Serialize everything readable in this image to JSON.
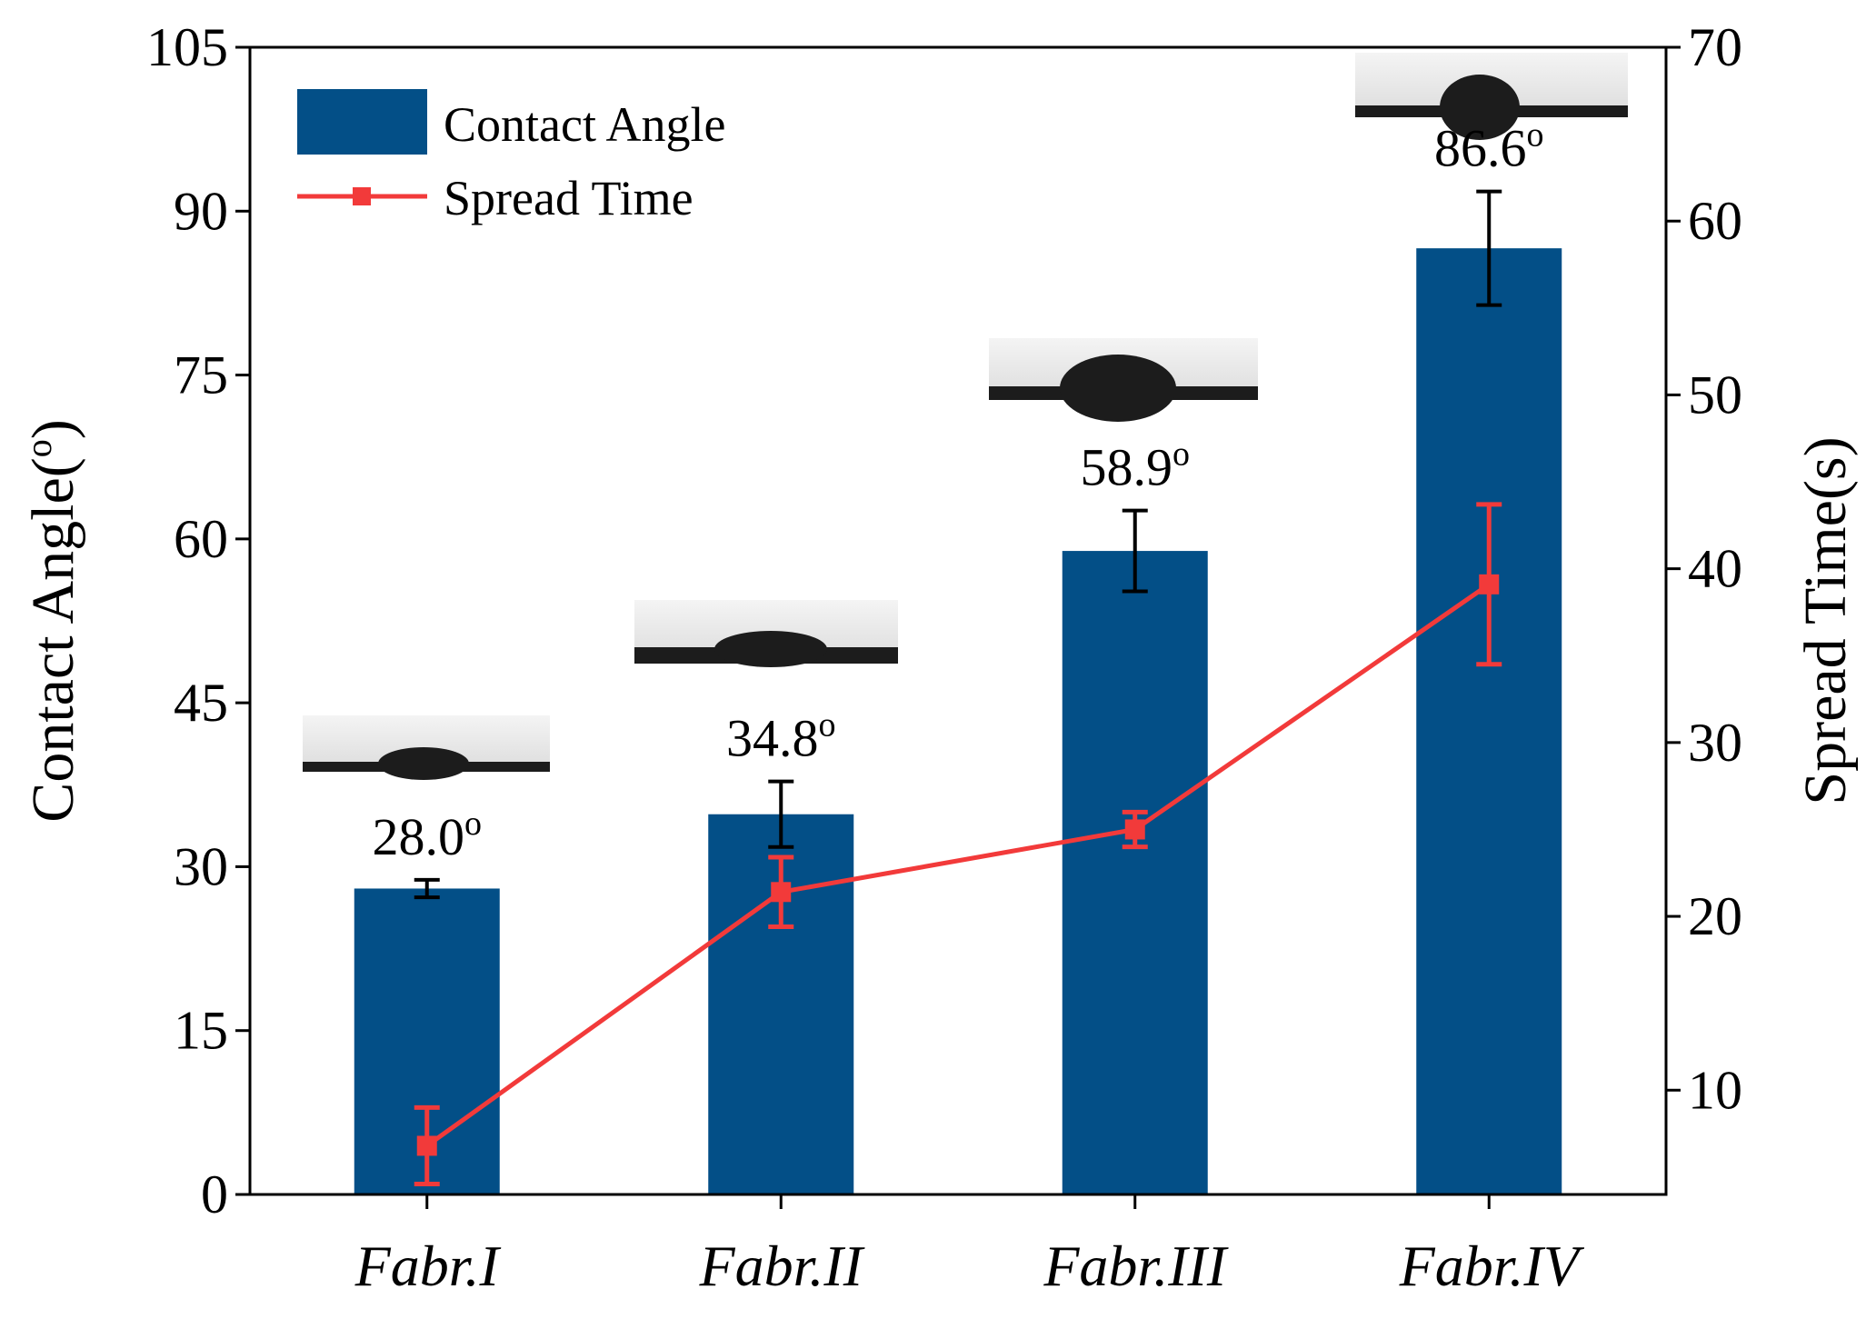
{
  "chart_data": {
    "type": "bar",
    "categories": [
      "Fabr.I",
      "Fabr.II",
      "Fabr.III",
      "Fabr.IV"
    ],
    "series": [
      {
        "name": "Contact Angle",
        "kind": "bar",
        "axis": "left",
        "values": [
          28.0,
          34.8,
          58.9,
          86.6
        ],
        "errors": [
          0.8,
          3.0,
          3.7,
          5.2
        ],
        "labels": [
          "28.0",
          "34.8",
          "58.9",
          "86.6"
        ],
        "color": "#034F87"
      },
      {
        "name": "Spread Time",
        "kind": "line",
        "axis": "right",
        "values": [
          6.8,
          21.4,
          25.0,
          39.1
        ],
        "errors": [
          2.2,
          2.0,
          1.0,
          4.6
        ],
        "color": "#F23A3A"
      }
    ],
    "xlabel": "",
    "ylabel": "Contact Angle(o)",
    "ylabel_main": "Contact Angle(",
    "ylabel_sup": "o",
    "ylabel_close": ")",
    "y2label": "Spread Time(s)",
    "ylim": [
      0,
      105
    ],
    "y2lim": [
      4,
      70
    ],
    "yticks": [
      0,
      15,
      30,
      45,
      60,
      75,
      90,
      105
    ],
    "y2ticks": [
      10,
      20,
      30,
      40,
      50,
      60,
      70
    ],
    "degree_sup": "o",
    "legend": {
      "position": "top-left",
      "entries": [
        "Contact Angle",
        "Spread Time"
      ]
    },
    "inset_images": [
      "droplet-fabr-i",
      "droplet-fabr-ii",
      "droplet-fabr-iii",
      "droplet-fabr-iv"
    ]
  },
  "colors": {
    "bar": "#034F87",
    "line": "#F23A3A",
    "axis": "#000000"
  }
}
